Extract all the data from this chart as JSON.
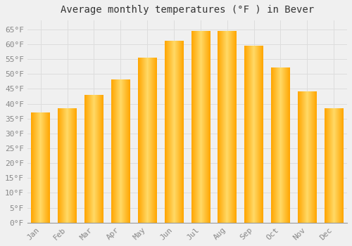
{
  "title": "Average monthly temperatures (°F ) in Bever",
  "months": [
    "Jan",
    "Feb",
    "Mar",
    "Apr",
    "May",
    "Jun",
    "Jul",
    "Aug",
    "Sep",
    "Oct",
    "Nov",
    "Dec"
  ],
  "values": [
    37,
    38.5,
    43,
    48,
    55.5,
    61,
    64.5,
    64.5,
    59.5,
    52,
    44,
    38.5
  ],
  "bar_color_center": "#FFD966",
  "bar_color_edge": "#FFA500",
  "background_color": "#F0F0F0",
  "plot_bg_color": "#F0F0F0",
  "grid_color": "#DDDDDD",
  "ylim": [
    0,
    68
  ],
  "yticks": [
    0,
    5,
    10,
    15,
    20,
    25,
    30,
    35,
    40,
    45,
    50,
    55,
    60,
    65
  ],
  "title_fontsize": 10,
  "tick_fontsize": 8,
  "font_family": "monospace",
  "bar_width": 0.7
}
